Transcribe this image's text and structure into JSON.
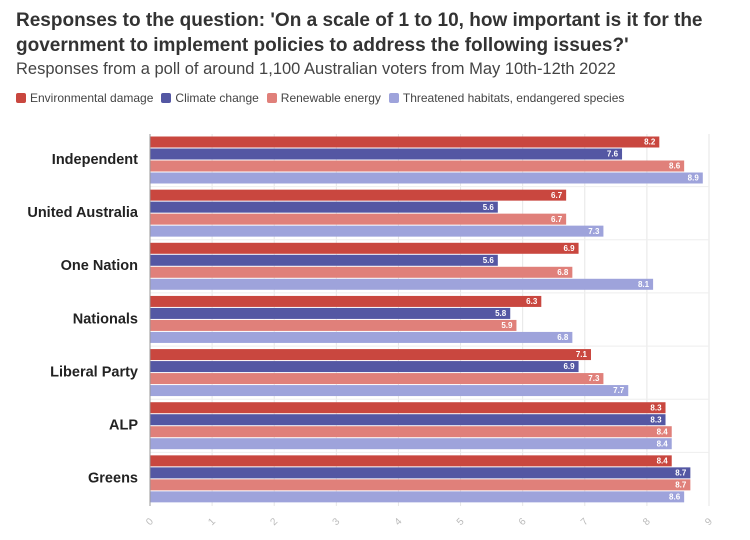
{
  "chart_data": {
    "type": "bar",
    "orientation": "horizontal",
    "title": "Responses to the question: 'On a scale of 1 to 10, how important is it for the government to implement policies to address the following issues?'",
    "subtitle": "Responses from a poll of around 1,100 Australian voters from May 10th-12th 2022",
    "categories": [
      "Independent",
      "United Australia",
      "One Nation",
      "Nationals",
      "Liberal Party",
      "ALP",
      "Greens"
    ],
    "series": [
      {
        "name": "Environmental damage",
        "color": "#c9473f",
        "values": [
          8.2,
          6.7,
          6.9,
          6.3,
          7.1,
          8.3,
          8.4
        ]
      },
      {
        "name": "Climate change",
        "color": "#5457a3",
        "values": [
          7.6,
          5.6,
          5.6,
          5.8,
          6.9,
          8.3,
          8.7
        ]
      },
      {
        "name": "Renewable energy",
        "color": "#e0807a",
        "values": [
          8.6,
          6.7,
          6.8,
          5.9,
          7.3,
          8.4,
          8.7
        ]
      },
      {
        "name": "Threatened habitats, endangered species",
        "color": "#9ea3db",
        "values": [
          8.9,
          7.3,
          8.1,
          6.8,
          7.7,
          8.4,
          8.6
        ]
      }
    ],
    "xlim": [
      0,
      9
    ],
    "xticks": [
      0,
      1,
      2,
      3,
      4,
      5,
      6,
      7,
      8,
      9
    ],
    "grid": true
  }
}
